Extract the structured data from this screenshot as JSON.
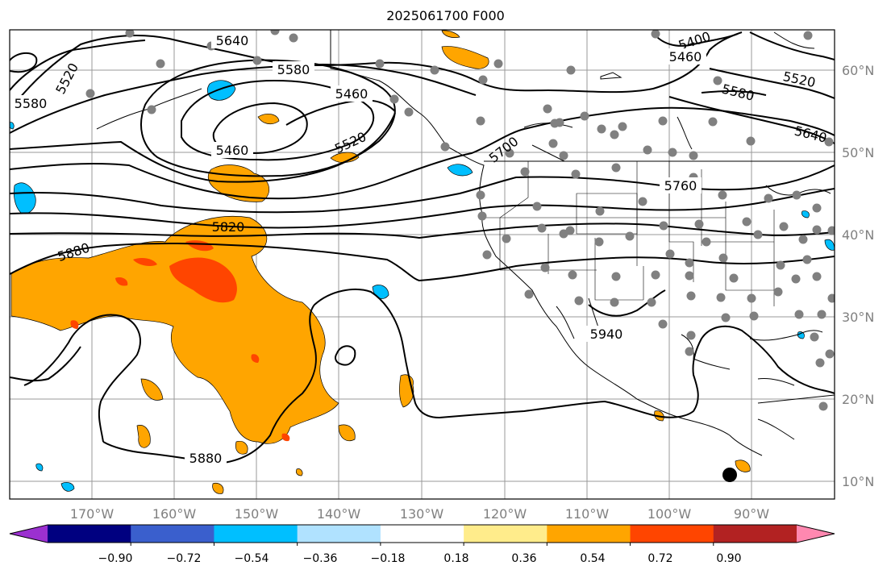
{
  "title": "2025061700 F000",
  "lon_labels": [
    "170°W",
    "160°W",
    "150°W",
    "140°W",
    "130°W",
    "120°W",
    "110°W",
    "100°W",
    "90°W"
  ],
  "lat_labels": [
    "60°N",
    "50°N",
    "40°N",
    "30°N",
    "20°N",
    "10°N"
  ],
  "contour_labels": [
    "5640",
    "5580",
    "5520",
    "5580",
    "5460",
    "5460",
    "5520",
    "5700",
    "5400",
    "5460",
    "5520",
    "5580",
    "5640",
    "5760",
    "5820",
    "5880",
    "5940",
    "5880"
  ],
  "colorbar": {
    "ticks": [
      "−0.90",
      "−0.72",
      "−0.54",
      "−0.36",
      "−0.18",
      "0.18",
      "0.36",
      "0.54",
      "0.72",
      "0.90"
    ],
    "colors": [
      "#9b30d0",
      "#000080",
      "#3a5fcd",
      "#00bfff",
      "#b0e2ff",
      "#ffffff",
      "#ffec8b",
      "#ffa500",
      "#ff4500",
      "#b22222",
      "#ff88b0"
    ]
  },
  "colors": {
    "positive_light": "#ffa500",
    "positive_mid": "#ff4500",
    "negative_light": "#00bfff",
    "negative_pale": "#b0e2ff",
    "grid": "#808080",
    "station": "#808080"
  },
  "icons": {
    "station_marker": "filled-gray-circle",
    "storm_marker": "filled-black-circle"
  }
}
